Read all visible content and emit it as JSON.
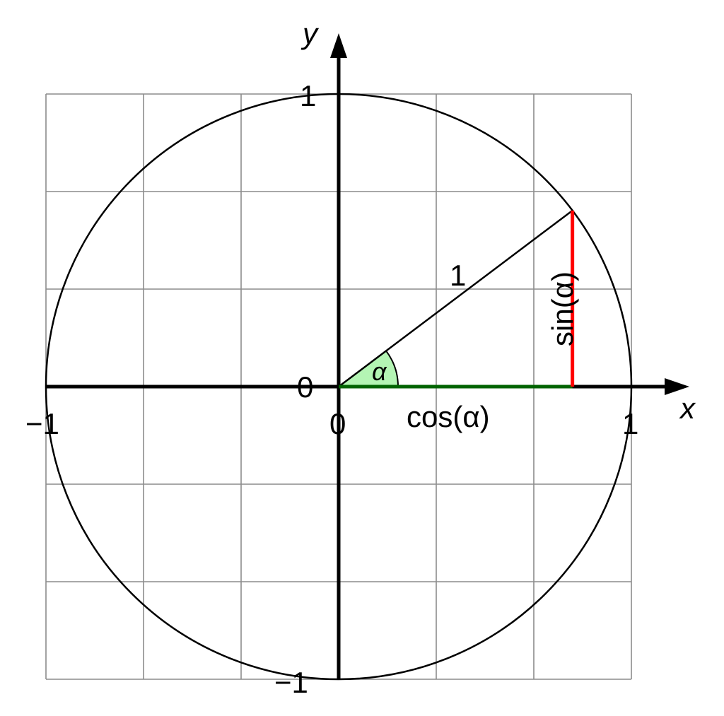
{
  "colors": {
    "grid": "#8c8c8c",
    "axis": "#000000",
    "circle": "#000000",
    "radius": "#000000",
    "cos": "#006400",
    "sin": "#ff0000",
    "angle_fill": "#b4f5b4"
  },
  "axes": {
    "x_name": "x",
    "y_name": "y",
    "tick_labels": {
      "x_min": "−1",
      "x_zero": "0",
      "x_max": "1",
      "y_zero": "0",
      "y_max": "1",
      "y_min": "−1"
    }
  },
  "radius_label": "1",
  "angle_label": "α",
  "cos_label": "cos(α)",
  "sin_label": "sin(α)",
  "angle_degrees": 37
}
